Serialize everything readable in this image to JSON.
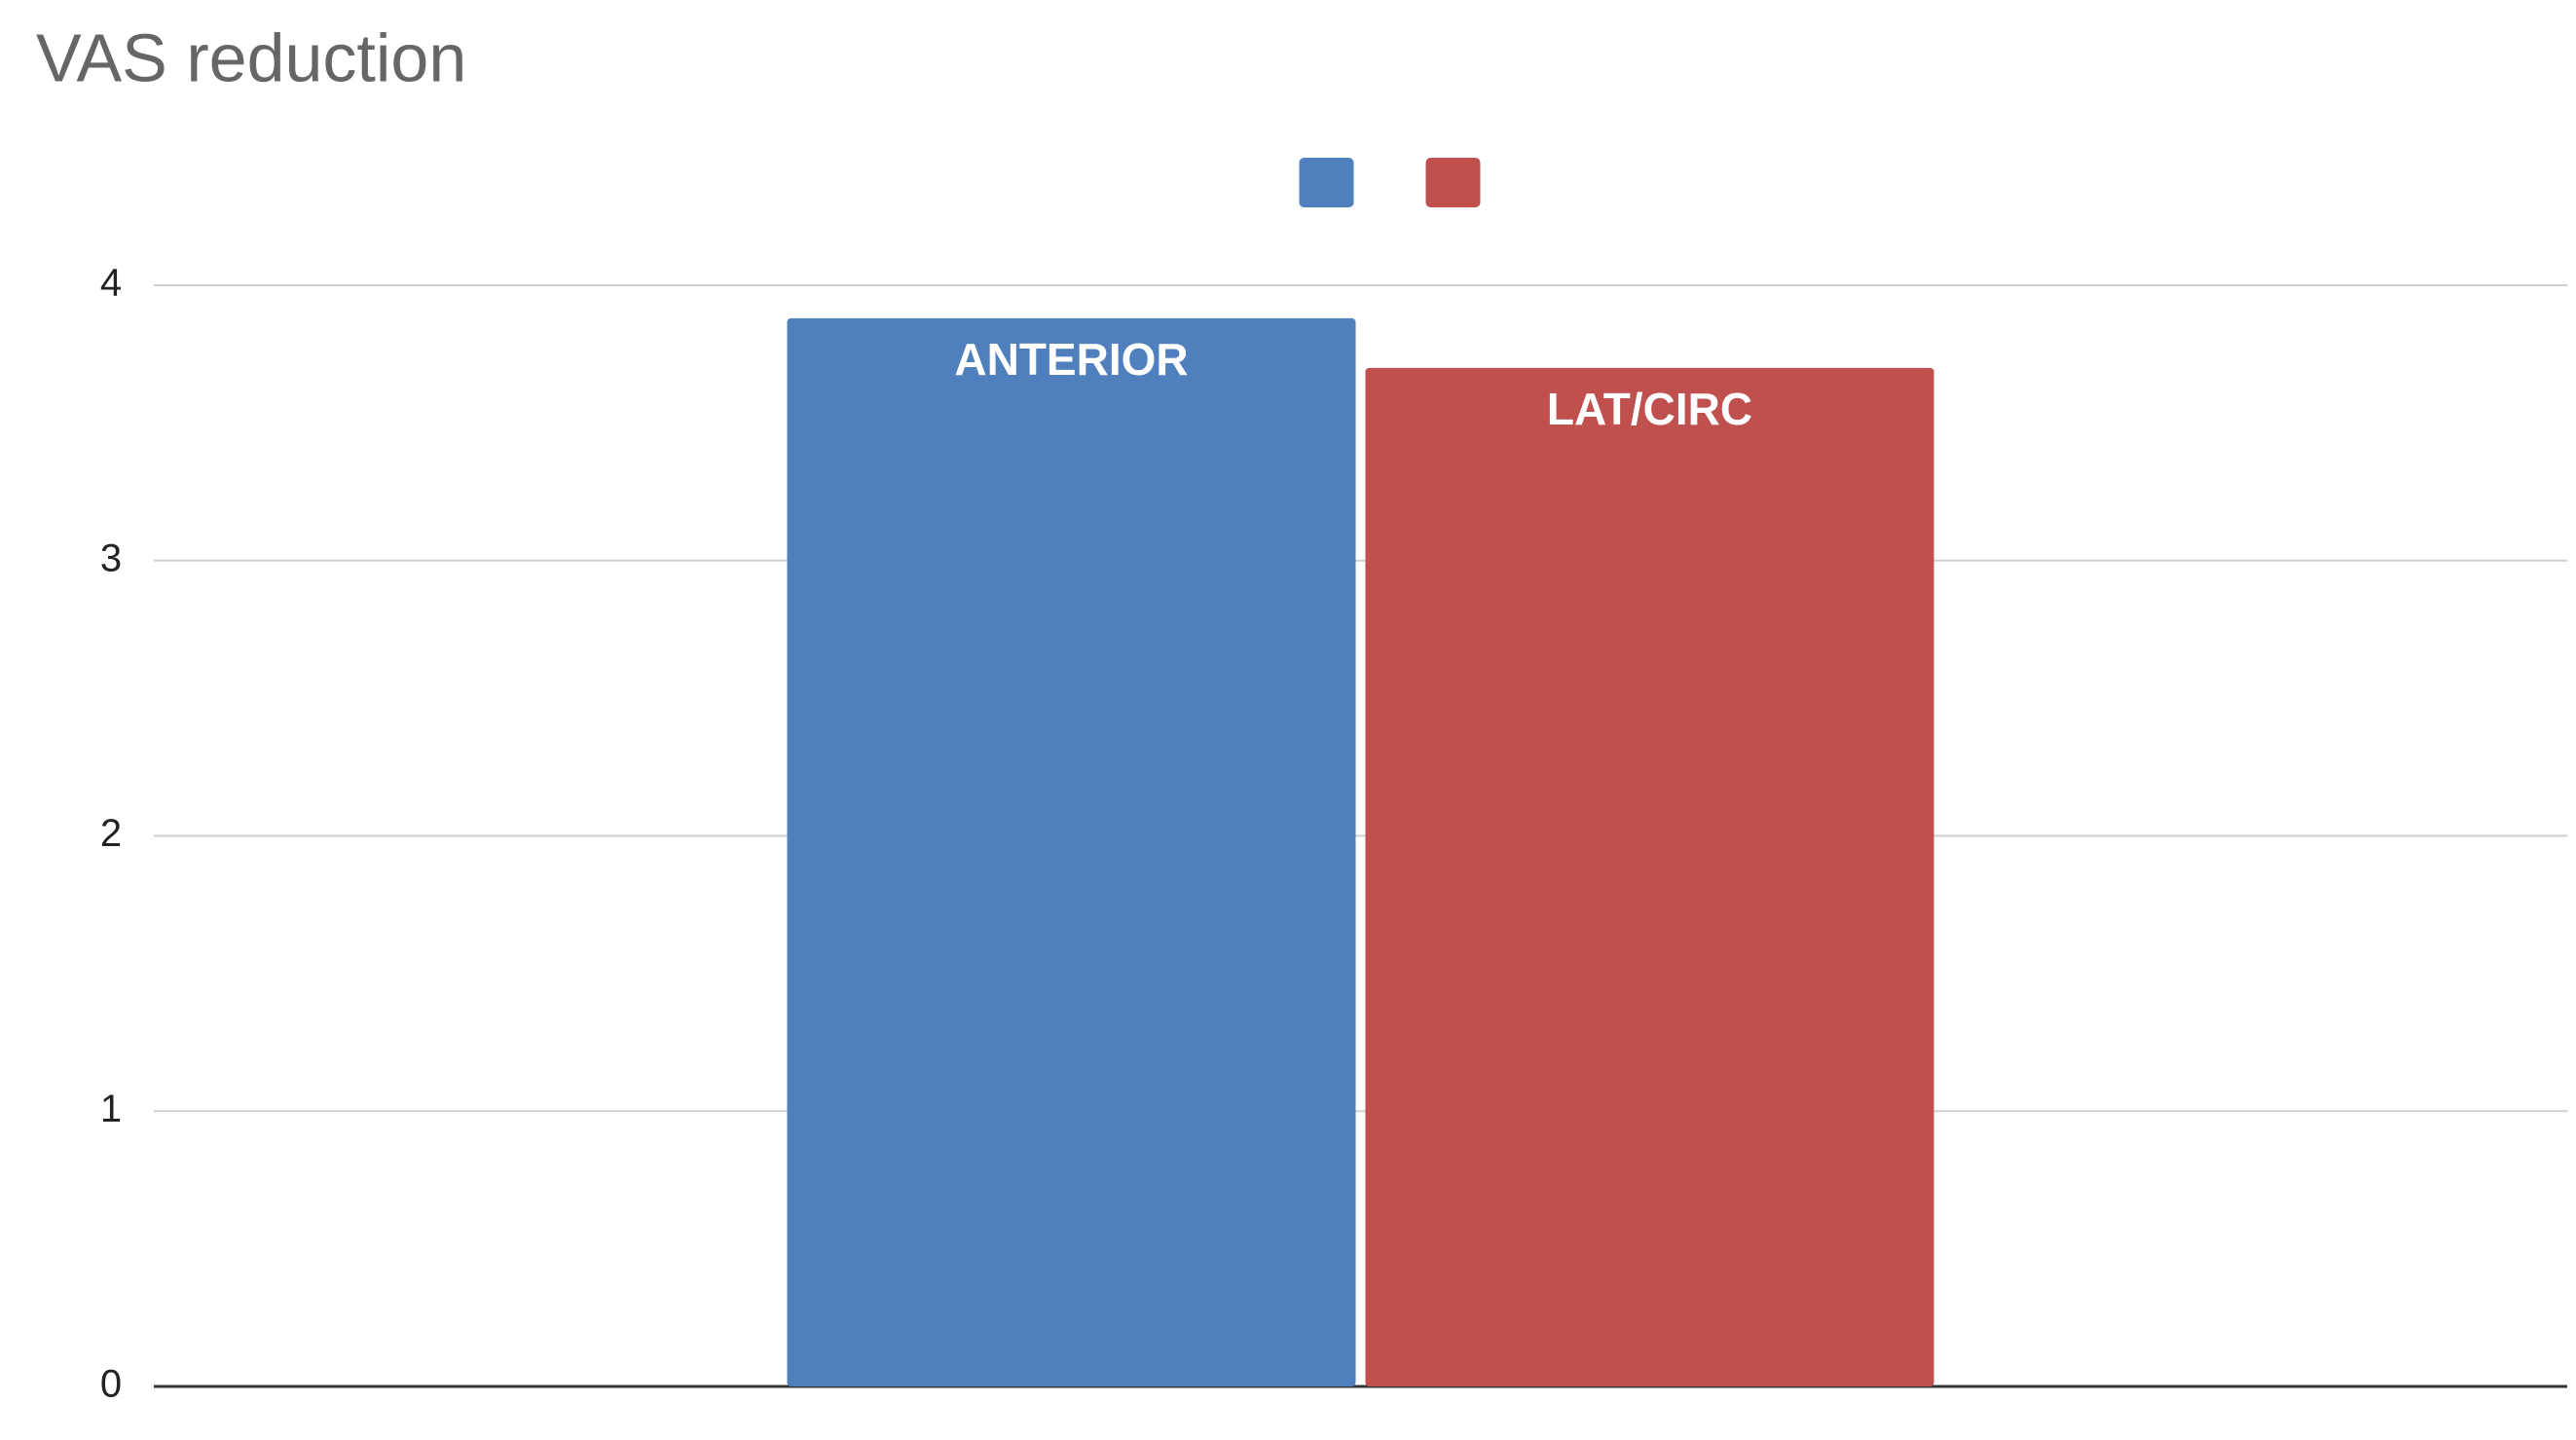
{
  "chart_data": {
    "type": "bar",
    "title": "VAS reduction",
    "categories": [
      null
    ],
    "series": [
      {
        "name": "ANTERIOR",
        "color": "#4f80bd",
        "values": [
          3.88
        ]
      },
      {
        "name": "LAT/CIRC",
        "color": "#c0504d",
        "values": [
          3.7
        ]
      }
    ],
    "ylim": [
      0,
      4
    ],
    "yticks": [
      0,
      1,
      2,
      3,
      4
    ],
    "grid": true,
    "legend": "top"
  }
}
